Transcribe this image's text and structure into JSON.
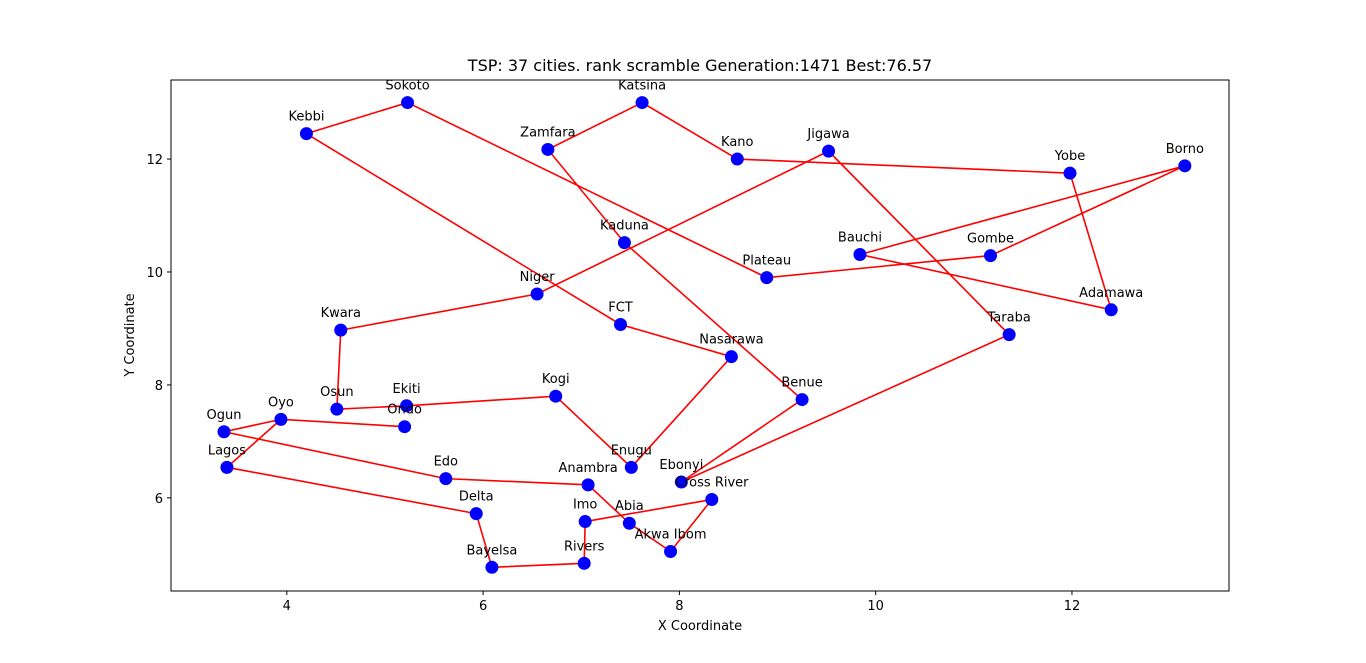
{
  "chart_data": {
    "type": "scatter",
    "title": "TSP: 37 cities. rank scramble Generation:1471 Best:76.57",
    "xlabel": "X Coordinate",
    "ylabel": "Y Coordinate",
    "xlim": [
      2.82,
      13.6
    ],
    "ylim": [
      4.35,
      13.4
    ],
    "xticks": [
      4,
      6,
      8,
      10,
      12
    ],
    "yticks": [
      6,
      8,
      10,
      12
    ],
    "grid": false,
    "point_color": "#0000ff",
    "route_color": "#ff0000",
    "cities": [
      {
        "name": "Kebbi",
        "x": 4.2,
        "y": 12.45
      },
      {
        "name": "Sokoto",
        "x": 5.23,
        "y": 13.0
      },
      {
        "name": "Katsina",
        "x": 7.62,
        "y": 13.0
      },
      {
        "name": "Zamfara",
        "x": 6.66,
        "y": 12.17
      },
      {
        "name": "Kano",
        "x": 8.59,
        "y": 12.0
      },
      {
        "name": "Jigawa",
        "x": 9.52,
        "y": 12.14
      },
      {
        "name": "Yobe",
        "x": 11.98,
        "y": 11.75
      },
      {
        "name": "Borno",
        "x": 13.15,
        "y": 11.88
      },
      {
        "name": "Kaduna",
        "x": 7.44,
        "y": 10.52
      },
      {
        "name": "Bauchi",
        "x": 9.84,
        "y": 10.31
      },
      {
        "name": "Gombe",
        "x": 11.17,
        "y": 10.29
      },
      {
        "name": "Plateau",
        "x": 8.89,
        "y": 9.9
      },
      {
        "name": "Adamawa",
        "x": 12.4,
        "y": 9.33
      },
      {
        "name": "Niger",
        "x": 6.55,
        "y": 9.61
      },
      {
        "name": "FCT",
        "x": 7.4,
        "y": 9.07
      },
      {
        "name": "Taraba",
        "x": 11.36,
        "y": 8.89
      },
      {
        "name": "Kwara",
        "x": 4.55,
        "y": 8.97
      },
      {
        "name": "Nasarawa",
        "x": 8.53,
        "y": 8.5
      },
      {
        "name": "Benue",
        "x": 9.25,
        "y": 7.74
      },
      {
        "name": "Kogi",
        "x": 6.74,
        "y": 7.8
      },
      {
        "name": "Ekiti",
        "x": 5.22,
        "y": 7.63
      },
      {
        "name": "Osun",
        "x": 4.51,
        "y": 7.57
      },
      {
        "name": "Oyo",
        "x": 3.94,
        "y": 7.39
      },
      {
        "name": "Ondo",
        "x": 5.2,
        "y": 7.26
      },
      {
        "name": "Ogun",
        "x": 3.36,
        "y": 7.17
      },
      {
        "name": "Enugu",
        "x": 7.51,
        "y": 6.54
      },
      {
        "name": "Lagos",
        "x": 3.39,
        "y": 6.54
      },
      {
        "name": "Edo",
        "x": 5.62,
        "y": 6.34
      },
      {
        "name": "Ebonyi",
        "x": 8.02,
        "y": 6.28
      },
      {
        "name": "Anambra",
        "x": 7.07,
        "y": 6.23
      },
      {
        "name": "Cross River",
        "x": 8.33,
        "y": 5.97
      },
      {
        "name": "Delta",
        "x": 5.93,
        "y": 5.72
      },
      {
        "name": "Imo",
        "x": 7.04,
        "y": 5.58
      },
      {
        "name": "Abia",
        "x": 7.49,
        "y": 5.55
      },
      {
        "name": "Akwa Ibom",
        "x": 7.91,
        "y": 5.05
      },
      {
        "name": "Rivers",
        "x": 7.03,
        "y": 4.84
      },
      {
        "name": "Bayelsa",
        "x": 6.09,
        "y": 4.77
      }
    ],
    "route": [
      "Kebbi",
      "Sokoto",
      "Plateau",
      "Gombe",
      "Borno",
      "Bauchi",
      "Adamawa",
      "Yobe",
      "Kano",
      "Katsina",
      "Zamfara",
      "Kaduna",
      "Benue",
      "Ebonyi",
      "Taraba",
      "Jigawa",
      "Niger",
      "Kwara",
      "Osun",
      "Ekiti",
      "Kogi",
      "Enugu",
      "Nasarawa",
      "FCT",
      "Kebbi"
    ],
    "route2": [
      "Ondo",
      "Oyo",
      "Lagos",
      "Delta",
      "Bayelsa",
      "Rivers",
      "Imo",
      "Cross River",
      "Akwa Ibom",
      "Abia",
      "Anambra",
      "Edo",
      "Ogun",
      "Oyo"
    ]
  }
}
